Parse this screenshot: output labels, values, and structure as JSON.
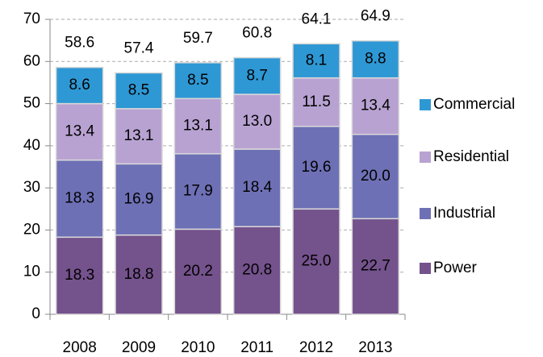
{
  "chart_data": {
    "type": "stacked_bar",
    "categories": [
      "2008",
      "2009",
      "2010",
      "2011",
      "2012",
      "2013"
    ],
    "series": [
      {
        "name": "Power",
        "color": "#74528c",
        "label_color": "#ffffff",
        "values": [
          18.3,
          18.8,
          20.2,
          20.8,
          25.0,
          22.7
        ],
        "value_labels": [
          "18.3",
          "18.8",
          "20.2",
          "20.8",
          "25.0",
          "22.7"
        ]
      },
      {
        "name": "Industrial",
        "color": "#6e70b6",
        "label_color": "#ffffff",
        "values": [
          18.3,
          16.9,
          17.9,
          18.4,
          19.6,
          20.0
        ],
        "value_labels": [
          "18.3",
          "16.9",
          "17.9",
          "18.4",
          "19.6",
          "20.0"
        ]
      },
      {
        "name": "Residential",
        "color": "#b8a2d2",
        "label_color": "#000000",
        "values": [
          13.4,
          13.1,
          13.1,
          13.0,
          11.5,
          13.4
        ],
        "value_labels": [
          "13.4",
          "13.1",
          "13.1",
          "13.0",
          "11.5",
          "13.4"
        ]
      },
      {
        "name": "Commercial",
        "color": "#2e98d4",
        "label_color": "#000000",
        "values": [
          8.6,
          8.5,
          8.5,
          8.7,
          8.1,
          8.8
        ],
        "value_labels": [
          "8.6",
          "8.5",
          "8.5",
          "8.7",
          "8.1",
          "8.8"
        ]
      }
    ],
    "totals": [
      58.6,
      57.4,
      59.7,
      60.8,
      64.1,
      64.9
    ],
    "ylim": [
      0,
      70
    ],
    "yticks": [
      0,
      10,
      20,
      30,
      40,
      50,
      60,
      70
    ],
    "grid": true,
    "legend": "right"
  }
}
